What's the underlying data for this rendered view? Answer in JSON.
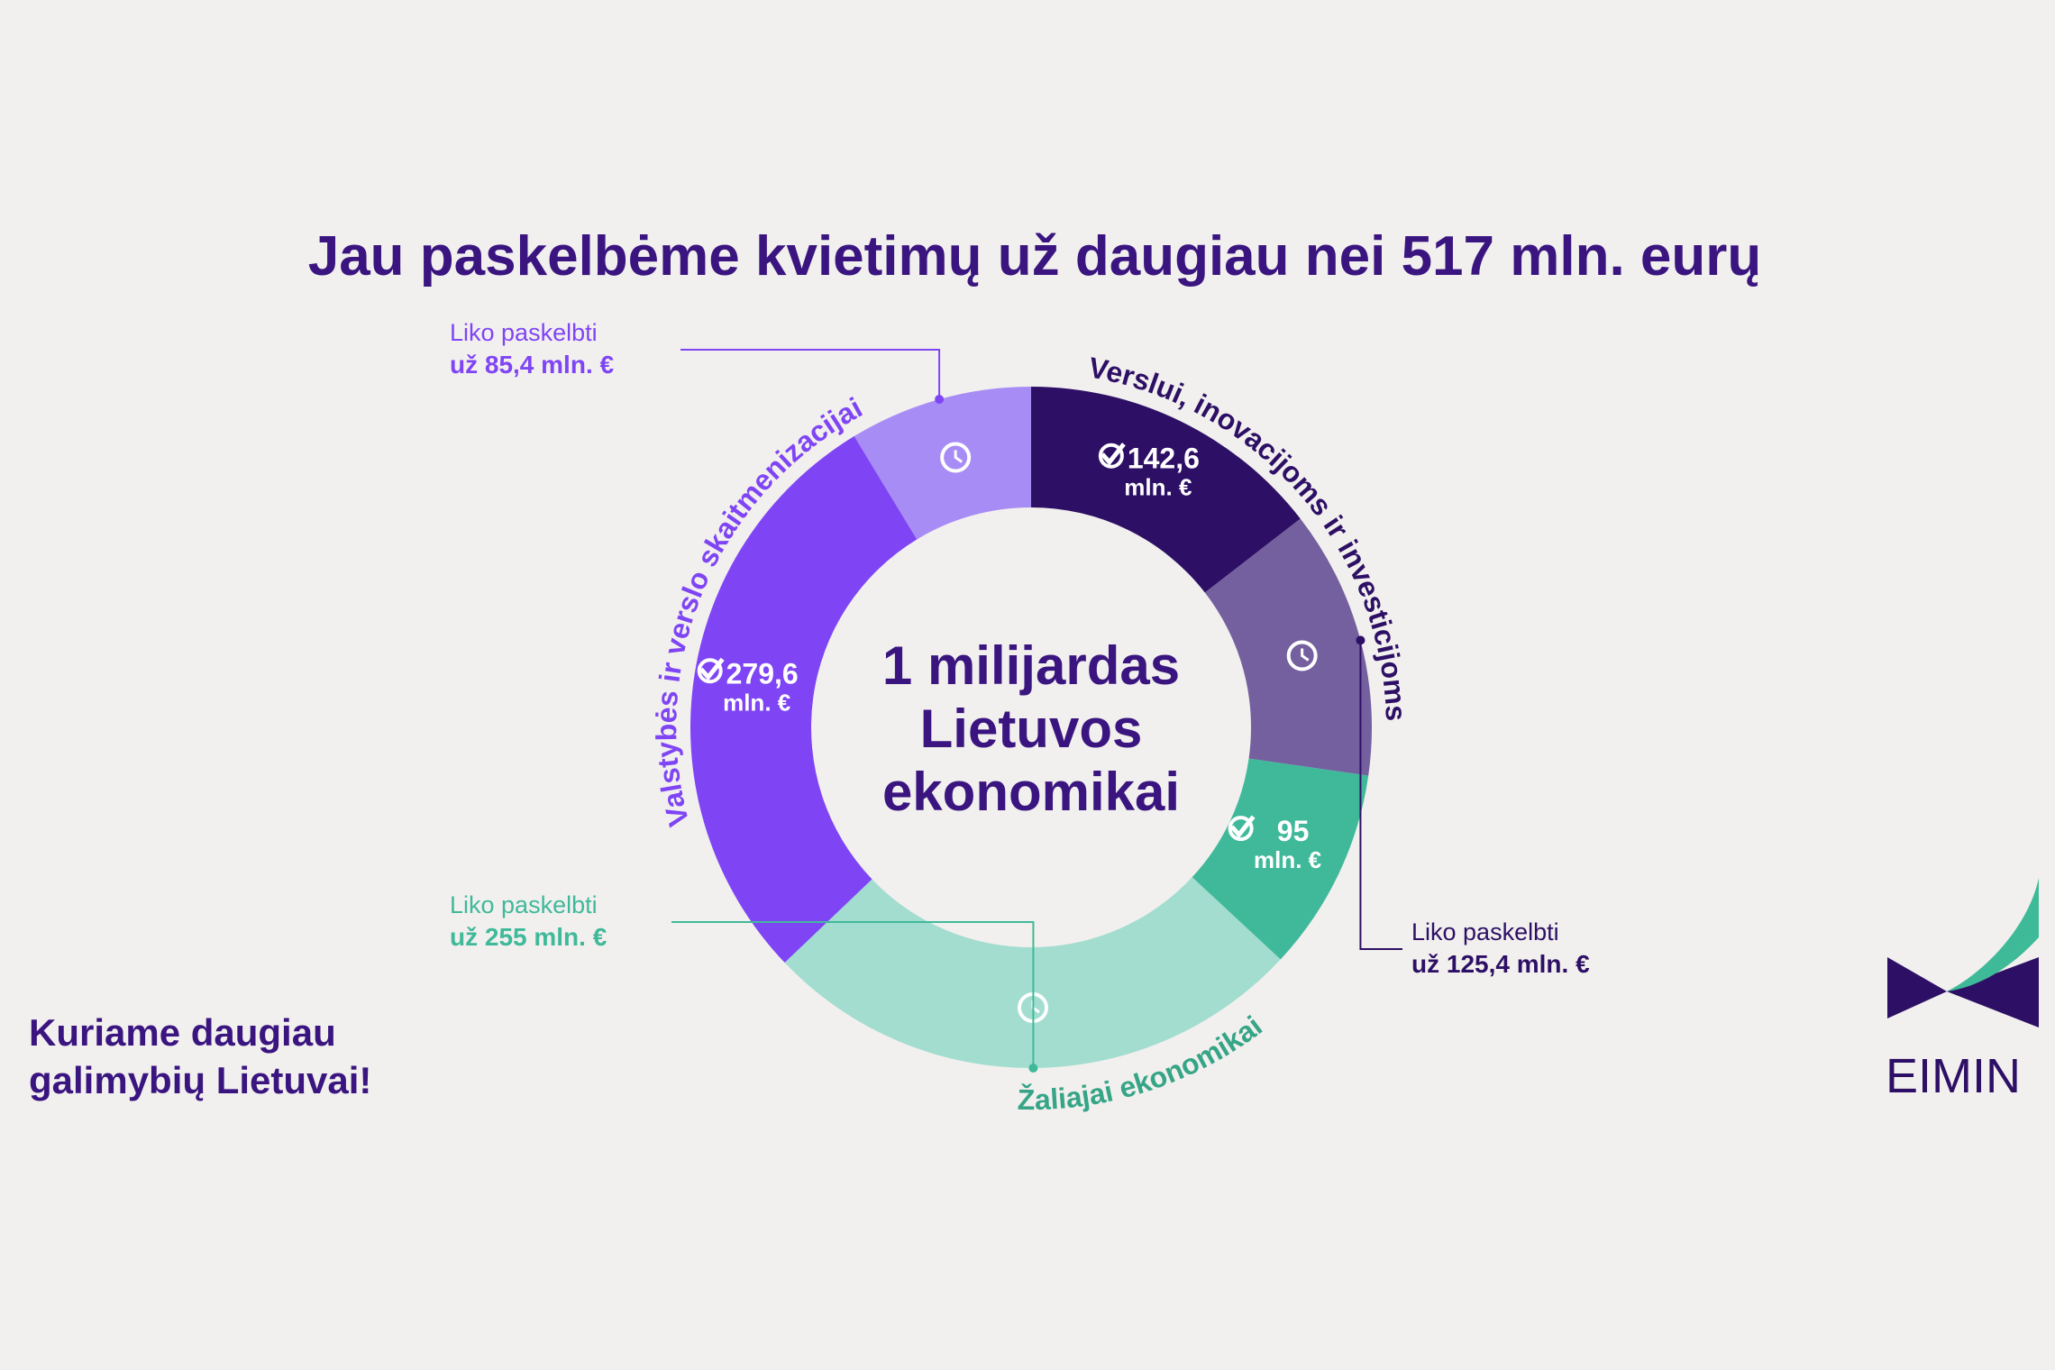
{
  "chart_data": {
    "type": "donut",
    "title": "Jau paskelbėme kvietimų už daugiau nei 517 mln. eurų",
    "center_text": [
      "1 milijardas",
      "Lietuvos",
      "ekonomikai"
    ],
    "unit_label": "mln. €",
    "callout_label": "Liko paskelbti",
    "groups": [
      {
        "name": "Verslui, inovacijoms ir investicijoms",
        "color": "#2d1065",
        "colors": [
          "#2d1065",
          "#74609f"
        ],
        "values": [
          142.6,
          125.4
        ],
        "value_labels": [
          "142,6",
          "už 125,4 mln. €"
        ]
      },
      {
        "name": "Žaliajai ekonomikai",
        "color": "#36a587",
        "colors": [
          "#40b99a",
          "#a2ddd0"
        ],
        "values": [
          95,
          255
        ],
        "value_labels": [
          "95",
          "už 255 mln. €"
        ]
      },
      {
        "name": "Valstybės ir verslo skaitmenizacijai",
        "color": "#7f45f5",
        "colors": [
          "#7f45f5",
          "#a88cf5"
        ],
        "values": [
          279.6,
          85.4
        ],
        "value_labels": [
          "279,6",
          "už 85,4 mln. €"
        ]
      }
    ]
  },
  "tagline": [
    "Kuriame daugiau",
    "galimybių Lietuvai!"
  ],
  "logo": "EIMIN"
}
